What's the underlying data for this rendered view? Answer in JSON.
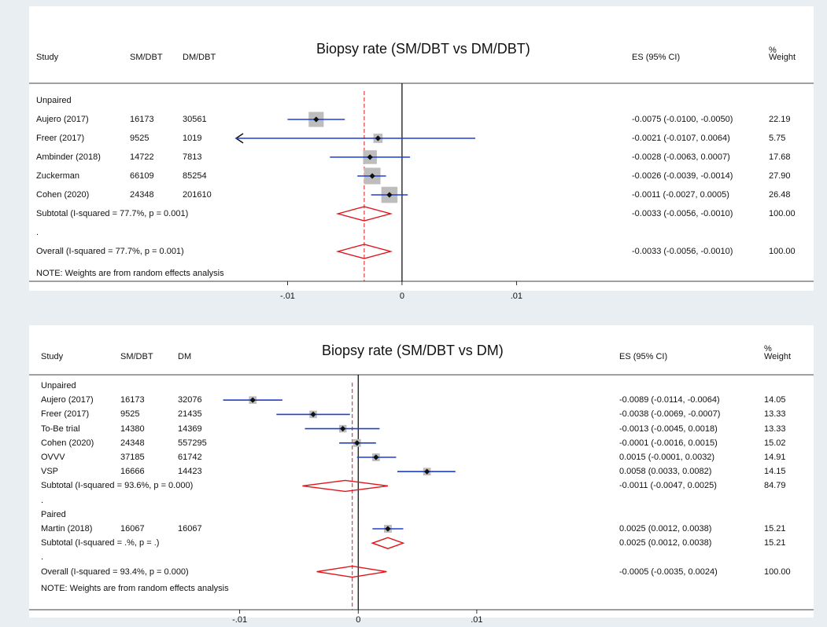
{
  "chart_data": [
    {
      "type": "forest",
      "title": "Biopsy rate (SM/DBT vs DM/DBT)",
      "columns": [
        "Study",
        "SM/DBT",
        "DM/DBT",
        "ES (95% CI)",
        "%",
        "Weight"
      ],
      "xlim": [
        -0.0145,
        0.0185
      ],
      "x_ticks": [
        -0.01,
        0,
        0.01
      ],
      "x_tick_labels": [
        "-.01",
        "0",
        ".01"
      ],
      "overall_dashed_line": -0.0033,
      "rows": [
        {
          "kind": "group",
          "label": "Unpaired"
        },
        {
          "kind": "study",
          "label": "Aujero (2017)",
          "n1": "16173",
          "n2": "30561",
          "es": -0.0075,
          "lo": -0.01,
          "hi": -0.005,
          "es_text": "-0.0075 (-0.0100, -0.0050)",
          "weight": "22.19"
        },
        {
          "kind": "study",
          "label": "Freer (2017)",
          "n1": "9525",
          "n2": "1019",
          "es": -0.0021,
          "lo": -0.0107,
          "hi": 0.0064,
          "es_text": "-0.0021 (-0.0107, 0.0064)",
          "weight": "5.75",
          "clipped_left": true
        },
        {
          "kind": "study",
          "label": "Ambinder (2018)",
          "n1": "14722",
          "n2": "7813",
          "es": -0.0028,
          "lo": -0.0063,
          "hi": 0.0007,
          "es_text": "-0.0028 (-0.0063, 0.0007)",
          "weight": "17.68"
        },
        {
          "kind": "study",
          "label": "Zuckerman",
          "n1": "66109",
          "n2": "85254",
          "es": -0.0026,
          "lo": -0.0039,
          "hi": -0.0014,
          "es_text": "-0.0026 (-0.0039, -0.0014)",
          "weight": "27.90"
        },
        {
          "kind": "study",
          "label": "Cohen (2020)",
          "n1": "24348",
          "n2": "201610",
          "es": -0.0011,
          "lo": -0.0027,
          "hi": 0.0005,
          "es_text": "-0.0011 (-0.0027, 0.0005)",
          "weight": "26.48"
        },
        {
          "kind": "subtotal",
          "label": "Subtotal  (I-squared = 77.7%, p = 0.001)",
          "es": -0.0033,
          "lo": -0.0056,
          "hi": -0.001,
          "es_text": "-0.0033 (-0.0056, -0.0010)",
          "weight": "100.00"
        },
        {
          "kind": "blank",
          "label": "."
        },
        {
          "kind": "overall",
          "label": "Overall  (I-squared = 77.7%, p = 0.001)",
          "es": -0.0033,
          "lo": -0.0056,
          "hi": -0.001,
          "es_text": "-0.0033 (-0.0056, -0.0010)",
          "weight": "100.00"
        }
      ],
      "note": "NOTE: Weights are from random effects analysis"
    },
    {
      "type": "forest",
      "title": "Biopsy rate (SM/DBT vs DM)",
      "columns": [
        "Study",
        "SM/DBT",
        "DM",
        "ES (95% CI)",
        "%",
        "Weight"
      ],
      "xlim": [
        -0.0119,
        0.0195
      ],
      "x_ticks": [
        -0.01,
        0,
        0.01
      ],
      "x_tick_labels": [
        "-.01",
        "0",
        ".01"
      ],
      "overall_dashed_line": -0.0005,
      "rows": [
        {
          "kind": "group",
          "label": "Unpaired"
        },
        {
          "kind": "study",
          "label": "Aujero (2017)",
          "n1": "16173",
          "n2": "32076",
          "es": -0.0089,
          "lo": -0.0114,
          "hi": -0.0064,
          "es_text": "-0.0089 (-0.0114, -0.0064)",
          "weight": "14.05"
        },
        {
          "kind": "study",
          "label": "Freer (2017)",
          "n1": "9525",
          "n2": "21435",
          "es": -0.0038,
          "lo": -0.0069,
          "hi": -0.0007,
          "es_text": "-0.0038 (-0.0069, -0.0007)",
          "weight": "13.33"
        },
        {
          "kind": "study",
          "label": "To-Be trial",
          "n1": "14380",
          "n2": "14369",
          "es": -0.0013,
          "lo": -0.0045,
          "hi": 0.0018,
          "es_text": "-0.0013 (-0.0045, 0.0018)",
          "weight": "13.33"
        },
        {
          "kind": "study",
          "label": "Cohen (2020)",
          "n1": "24348",
          "n2": "557295",
          "es": -0.0001,
          "lo": -0.0016,
          "hi": 0.0015,
          "es_text": "-0.0001 (-0.0016, 0.0015)",
          "weight": "15.02"
        },
        {
          "kind": "study",
          "label": "OVVV",
          "n1": "37185",
          "n2": "61742",
          "es": 0.0015,
          "lo": -0.0001,
          "hi": 0.0032,
          "es_text": "0.0015 (-0.0001, 0.0032)",
          "weight": "14.91"
        },
        {
          "kind": "study",
          "label": "VSP",
          "n1": "16666",
          "n2": "14423",
          "es": 0.0058,
          "lo": 0.0033,
          "hi": 0.0082,
          "es_text": "0.0058 (0.0033, 0.0082)",
          "weight": "14.15"
        },
        {
          "kind": "subtotal",
          "label": "Subtotal  (I-squared = 93.6%, p = 0.000)",
          "es": -0.0011,
          "lo": -0.0047,
          "hi": 0.0025,
          "es_text": "-0.0011 (-0.0047, 0.0025)",
          "weight": "84.79"
        },
        {
          "kind": "blank",
          "label": "."
        },
        {
          "kind": "group",
          "label": "Paired"
        },
        {
          "kind": "study",
          "label": "Martin (2018)",
          "n1": "16067",
          "n2": "16067",
          "es": 0.0025,
          "lo": 0.0012,
          "hi": 0.0038,
          "es_text": "0.0025 (0.0012, 0.0038)",
          "weight": "15.21"
        },
        {
          "kind": "subtotal",
          "label": "Subtotal  (I-squared = .%, p = .)",
          "es": 0.0025,
          "lo": 0.0012,
          "hi": 0.0038,
          "es_text": "0.0025 (0.0012, 0.0038)",
          "weight": "15.21"
        },
        {
          "kind": "blank",
          "label": "."
        },
        {
          "kind": "overall",
          "label": "Overall  (I-squared = 93.4%, p = 0.000)",
          "es": -0.0005,
          "lo": -0.0035,
          "hi": 0.0024,
          "es_text": "-0.0005 (-0.0035, 0.0024)",
          "weight": "100.00"
        }
      ],
      "note": "NOTE: Weights are from random effects analysis"
    }
  ],
  "colors": {
    "ci_line": "#1f3fd6",
    "diamond": "#e0141b",
    "square": "#bdbdbd",
    "point": "#111111",
    "axis": "#000000"
  }
}
